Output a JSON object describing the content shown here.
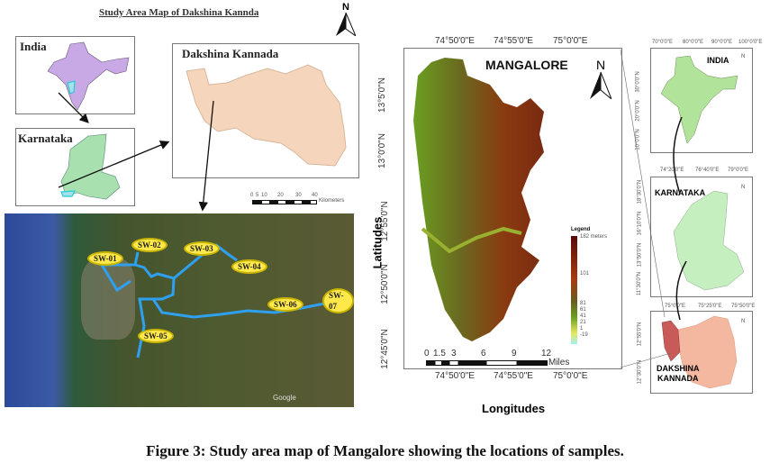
{
  "left_panel": {
    "title": "Study Area Map of Dakshina Kannda",
    "north": "N",
    "india_label": "India",
    "karnataka_label": "Karnataka",
    "dakshina_label": "Dakshina Kannada",
    "scale_ticks": [
      "0",
      "5",
      "10",
      "20",
      "30",
      "40"
    ],
    "scale_unit": "Kilometers",
    "sample_sites": [
      "SW-01",
      "SW-02",
      "SW-03",
      "SW-04",
      "SW-05",
      "SW-06",
      "SW-07"
    ],
    "watermark": "Google"
  },
  "center_map": {
    "title": "MANGALORE",
    "north": "N",
    "lon_ticks": [
      "74°50'0\"E",
      "74°55'0\"E",
      "75°0'0\"E"
    ],
    "lat_ticks": [
      "13°5'0\"N",
      "13°0'0\"N",
      "12°55'0\"N",
      "12°50'0\"N",
      "12°45'0\"N"
    ],
    "xlabel": "Longitudes",
    "ylabel": "Latitudes",
    "legend_title": "Legend",
    "legend_values": [
      "182 meters",
      "101",
      "81",
      "61",
      "41",
      "21",
      "1",
      "-19"
    ],
    "scale_ticks": [
      "0",
      "1.5",
      "3",
      "6",
      "9",
      "12"
    ],
    "scale_unit": "Miles"
  },
  "right_panel": {
    "india": {
      "title": "INDIA",
      "north": "N",
      "lon_ticks": [
        "70°0'0\"E",
        "80°0'0\"E",
        "90°0'0\"E",
        "100°0'0\"E"
      ],
      "lat_ticks": [
        "30°0'0\"N",
        "20°0'0\"N",
        "10°0'0\"N"
      ]
    },
    "karnataka": {
      "title": "KARNATAKA",
      "north": "N",
      "lon_ticks": [
        "74°20'0\"E",
        "76°40'0\"E",
        "79°0'0\"E"
      ],
      "lat_ticks": [
        "18°30'0\"N",
        "16°10'0\"N",
        "13°50'0\"N",
        "11°30'0\"N"
      ]
    },
    "dakshina": {
      "title_line1": "DAKSHINA",
      "title_line2": "KANNADA",
      "north": "N",
      "lon_ticks": [
        "75°0'0\"E",
        "75°25'0\"E",
        "75°50'0\"E"
      ],
      "lat_ticks": [
        "12°55'0\"N",
        "12°30'0\"N"
      ]
    }
  },
  "caption": "Figure 3: Study area map of Mangalore showing the locations of samples."
}
